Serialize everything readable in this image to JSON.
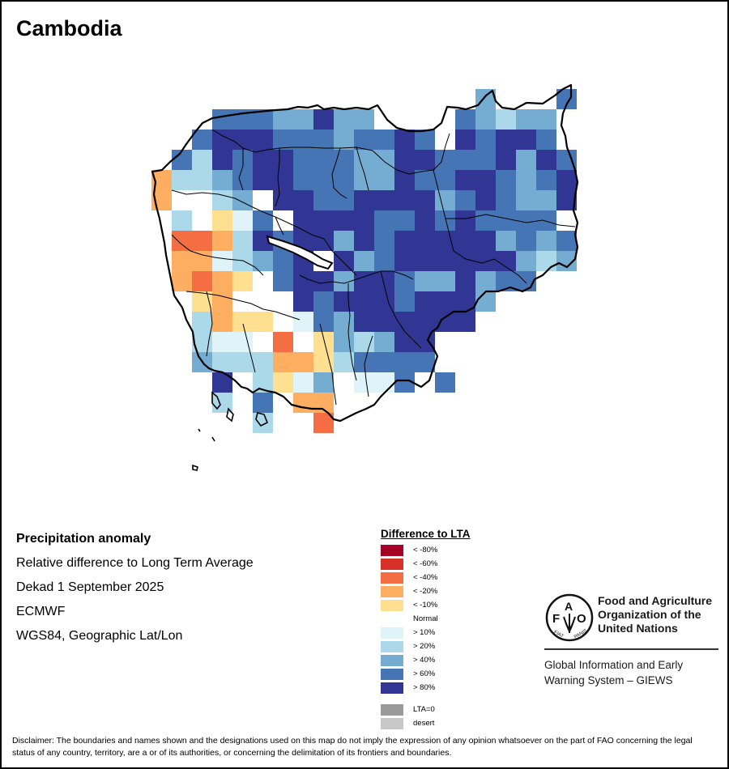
{
  "title": "Cambodia",
  "info": {
    "heading": "Precipitation anomaly",
    "line1": "Relative difference to Long Term Average",
    "line2": "Dekad 1 September 2025",
    "line3": "ECMWF",
    "line4": "WGS84, Geographic Lat/Lon"
  },
  "legend": {
    "title": "Difference to LTA",
    "items": [
      {
        "key": "R80",
        "label": "< -80%",
        "color": "#a50026"
      },
      {
        "key": "R60",
        "label": "< -60%",
        "color": "#d73027"
      },
      {
        "key": "R",
        "label": "< -40%",
        "color": "#f46d43"
      },
      {
        "key": "O",
        "label": "< -20%",
        "color": "#fdae61"
      },
      {
        "key": "Y",
        "label": "< -10%",
        "color": "#fee090"
      },
      {
        "key": "W",
        "label": "Normal",
        "color": "#ffffff"
      },
      {
        "key": "V",
        "label": "> 10%",
        "color": "#e0f3f8"
      },
      {
        "key": "P",
        "label": "> 20%",
        "color": "#abd9e9"
      },
      {
        "key": "L",
        "label": "> 40%",
        "color": "#74add1"
      },
      {
        "key": "M",
        "label": "> 60%",
        "color": "#4575b4"
      },
      {
        "key": "N",
        "label": "> 80%",
        "color": "#313695"
      }
    ],
    "extra": [
      {
        "label": "LTA=0",
        "color": "#9a9a9a"
      },
      {
        "label": "desert",
        "color": "#c8c8c8"
      }
    ]
  },
  "grid": [
    "WWWWWWWWWWWWWWWWLWWWM",
    "WWWMMMLLNLLWWWWMLPLLW",
    "WWMNNNMMMLMMNMWNMNNMW",
    "WMPNMNNMMMLLNNMMMNLNM",
    "OPPLMNNMMMLLNMMNNMLMN",
    "OWWPLWNNMMNNNNLMNMLLN",
    "WPWYVMWNNNNMMNMNMMMMW",
    "WRROPNMNNLNMNNNNNLMLM",
    "WOOVPLMNWNLMNNNNNNLPL",
    "WOROYWMNNLNNMLLNLMMWW",
    "WWYOWWWNMNNNMNNNLWWWW",
    "WWPOYYWVMLNNNNNNWWWWW",
    "WWPVVWRWYLPLNNWWWWWWW",
    "WWLPPPOOYPMMMMWWWWWWW",
    "WWWNWPYVLWVVMWMWWWWWW",
    "WWWPWMWOOWWWWWWWWWWWW",
    "WWWWWPWWRWWWWWWWWWWWW"
  ],
  "logo": {
    "org_line1": "Food and Agriculture",
    "org_line2": "Organization of the",
    "org_line3": "United Nations",
    "seal_letters": "FAO",
    "seal_motto": "FIAT PANIS",
    "system_line1": "Global Information and Early",
    "system_line2": "Warning System – GIEWS"
  },
  "disclaimer": "Disclaimer: The boundaries and names shown and the designations used on this map do not imply the expression of any opinion whatsoever on the part of FAO concerning the legal status of any country, territory, are a or of its authorities, or concerning the delimitation of its frontiers and boundaries."
}
